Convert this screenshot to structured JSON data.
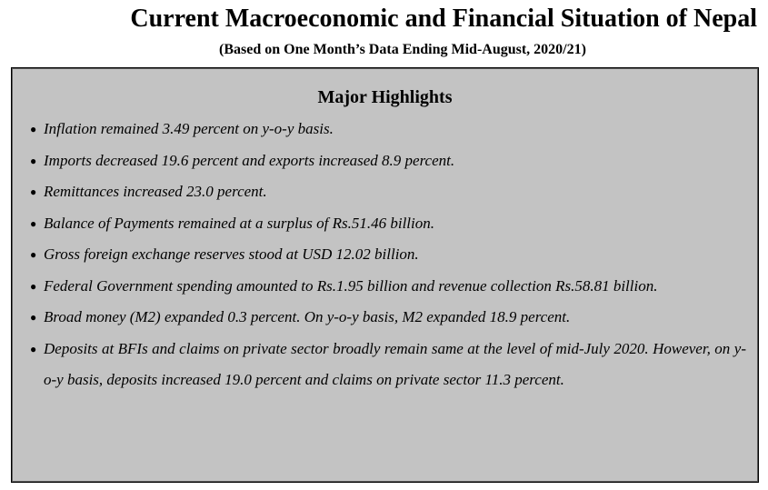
{
  "header": {
    "title": "Current Macroeconomic and Financial Situation of Nepal",
    "subtitle": "(Based on One Month’s Data Ending Mid-August, 2020/21)"
  },
  "highlights": {
    "heading": "Major Highlights",
    "bullet_glyph": "●",
    "items": [
      "Inflation remained 3.49 percent on y-o-y basis.",
      "Imports decreased 19.6 percent and exports increased 8.9 percent.",
      "Remittances increased 23.0 percent.",
      "Balance of Payments remained at a surplus of Rs.51.46 billion.",
      "Gross foreign exchange reserves stood at USD 12.02 billion.",
      "Federal Government spending amounted to Rs.1.95 billion and revenue collection Rs.58.81 billion.",
      "Broad money (M2) expanded 0.3 percent. On y-o-y basis, M2 expanded 18.9 percent.",
      "Deposits at BFIs and claims on private sector broadly remain same at the level of mid-July 2020. However, on y-o-y basis, deposits increased 19.0 percent and claims on private sector 11.3 percent."
    ]
  }
}
